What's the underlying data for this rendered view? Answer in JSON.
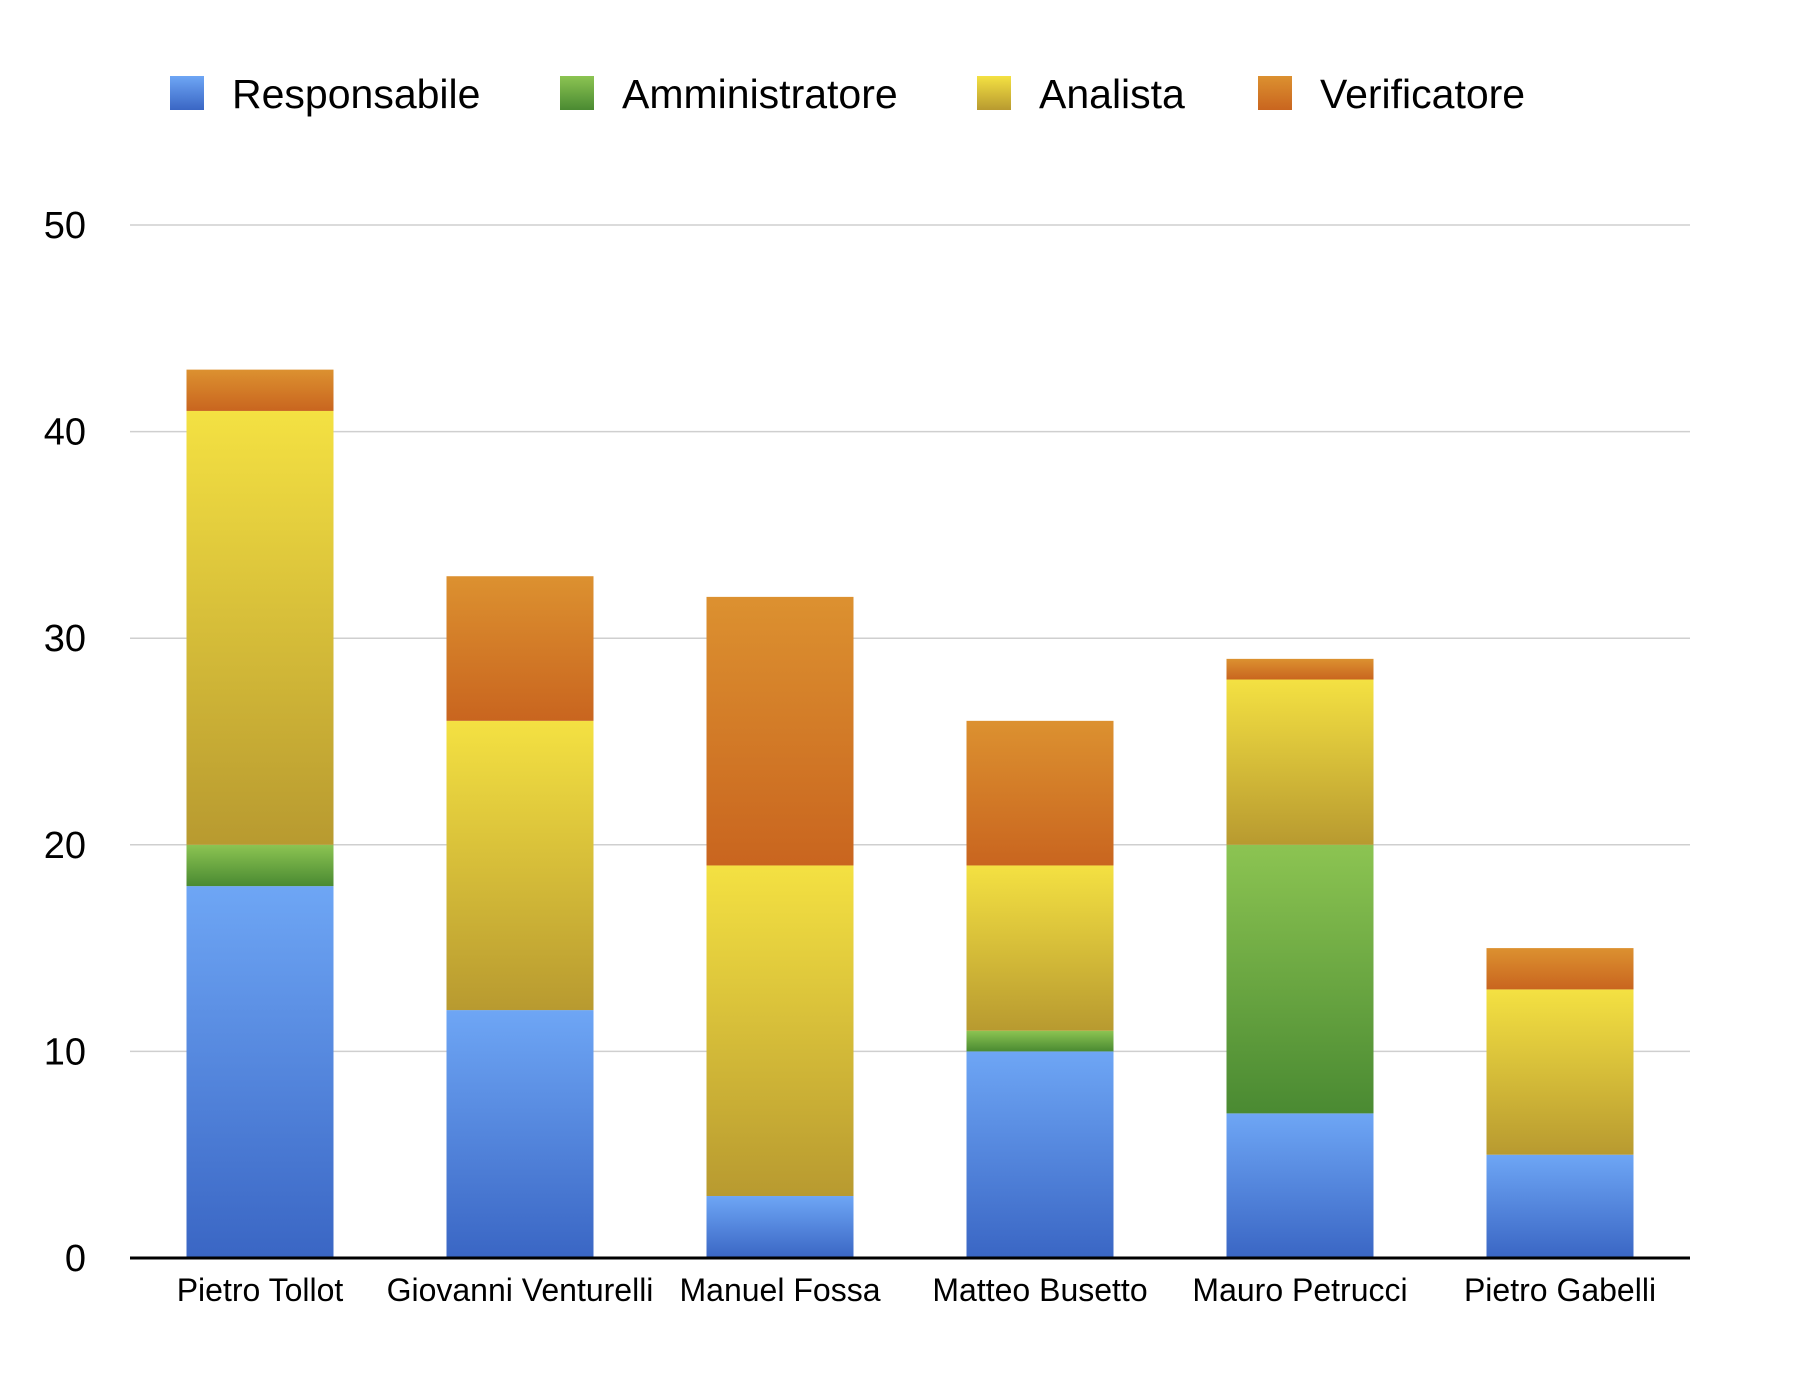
{
  "chart_data": {
    "type": "bar",
    "stacked": true,
    "title": "",
    "xlabel": "",
    "ylabel": "",
    "ylim": [
      0,
      50
    ],
    "yticks": [
      0,
      10,
      20,
      30,
      40,
      50
    ],
    "grid": true,
    "legend_position": "top",
    "categories": [
      "Pietro Tollot",
      "Giovanni Venturelli",
      "Manuel Fossa",
      "Matteo Busetto",
      "Mauro Petrucci",
      "Pietro Gabelli"
    ],
    "series": [
      {
        "name": "Responsabile",
        "values": [
          18,
          12,
          3,
          10,
          7,
          5
        ],
        "color_top": "#6ea6f5",
        "color_bottom": "#3a66c4"
      },
      {
        "name": "Amministratore",
        "values": [
          2,
          0,
          0,
          1,
          13,
          0
        ],
        "color_top": "#8cc452",
        "color_bottom": "#4a8a32"
      },
      {
        "name": "Analista",
        "values": [
          21,
          14,
          16,
          8,
          8,
          8
        ],
        "color_top": "#f4e142",
        "color_bottom": "#b89a30"
      },
      {
        "name": "Verificatore",
        "values": [
          2,
          7,
          13,
          7,
          1,
          2
        ],
        "color_top": "#dc9130",
        "color_bottom": "#c9651f"
      }
    ]
  }
}
